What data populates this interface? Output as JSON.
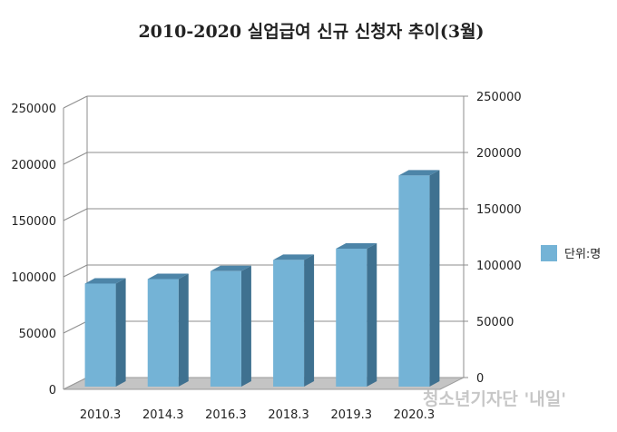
{
  "chart_data": {
    "type": "bar",
    "title": "2010-2020 실업급여 신규 신청자 추이(3월)",
    "categories": [
      "2010.3",
      "2014.3",
      "2016.3",
      "2018.3",
      "2019.3",
      "2020.3"
    ],
    "series": [
      {
        "name": "단위:명",
        "values": [
          94000,
          98000,
          105000,
          115000,
          125000,
          190000
        ]
      }
    ],
    "y_ticks_left": [
      "0",
      "50000",
      "100000",
      "150000",
      "200000",
      "250000"
    ],
    "y_ticks_right": [
      "0",
      "50000",
      "100000",
      "150000",
      "200000",
      "250000"
    ],
    "ylim": [
      0,
      250000
    ],
    "grid": true,
    "legend_position": "right",
    "colors": {
      "bar_front": "#74b3d6",
      "bar_side": "#3f7190",
      "bar_top": "#4d85a8",
      "floor": "#c4c4c4",
      "grid": "#8c8c8c"
    }
  },
  "watermark": "청소년기자단 '내일'"
}
